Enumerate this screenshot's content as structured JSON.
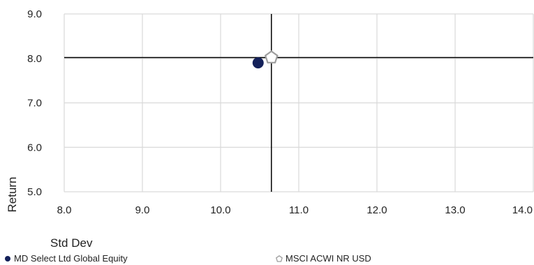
{
  "chart_data": {
    "type": "scatter",
    "xlabel": "Std Dev",
    "ylabel": "Return",
    "xlim": [
      8.0,
      14.0
    ],
    "ylim": [
      5.0,
      9.0
    ],
    "xticks": [
      "8.0",
      "9.0",
      "10.0",
      "11.0",
      "12.0",
      "13.0",
      "14.0"
    ],
    "yticks": [
      "5.0",
      "6.0",
      "7.0",
      "8.0",
      "9.0"
    ],
    "grid": true,
    "crosshair": {
      "x": 10.65,
      "y": 8.02
    },
    "series": [
      {
        "name": "MD Select Ltd Global Equity",
        "marker": "circle",
        "color": "#14215a",
        "points": [
          {
            "x": 10.48,
            "y": 7.9
          }
        ]
      },
      {
        "name": "MSCI ACWI NR USD",
        "marker": "pentagon",
        "color": "#9e9e9e",
        "points": [
          {
            "x": 10.65,
            "y": 8.02
          }
        ]
      }
    ],
    "legend_position": "bottom"
  }
}
